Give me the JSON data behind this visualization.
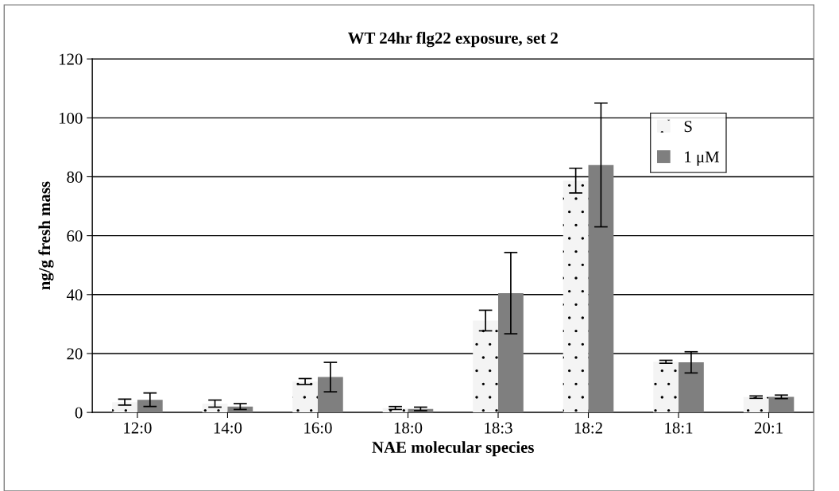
{
  "chart_data": {
    "type": "bar",
    "title": "WT 24hr flg22 exposure, set 2",
    "xlabel": "NAE molecular species",
    "ylabel": "ng/g fresh mass",
    "categories": [
      "12:0",
      "14:0",
      "16:0",
      "18:0",
      "18:3",
      "18:2",
      "18:1",
      "20:1"
    ],
    "series": [
      {
        "name": "S",
        "color": "#f4f4f4",
        "values": [
          3.5,
          3,
          10.5,
          1.5,
          31.2,
          78.7,
          17.2,
          5.2
        ],
        "errors": [
          1,
          1.2,
          1,
          0.5,
          3.5,
          4.2,
          0.5,
          0.4
        ]
      },
      {
        "name": "1 μM",
        "color": "#7f7f7f",
        "values": [
          4.3,
          2,
          12,
          1.2,
          40.5,
          84,
          17,
          5.3
        ],
        "errors": [
          2.3,
          1,
          5,
          0.6,
          13.8,
          21,
          3.6,
          0.6
        ]
      }
    ],
    "ylim": [
      0,
      120
    ],
    "yticks": [
      0,
      20,
      40,
      60,
      80,
      100,
      120
    ],
    "grid": "y",
    "legend": "top right"
  }
}
